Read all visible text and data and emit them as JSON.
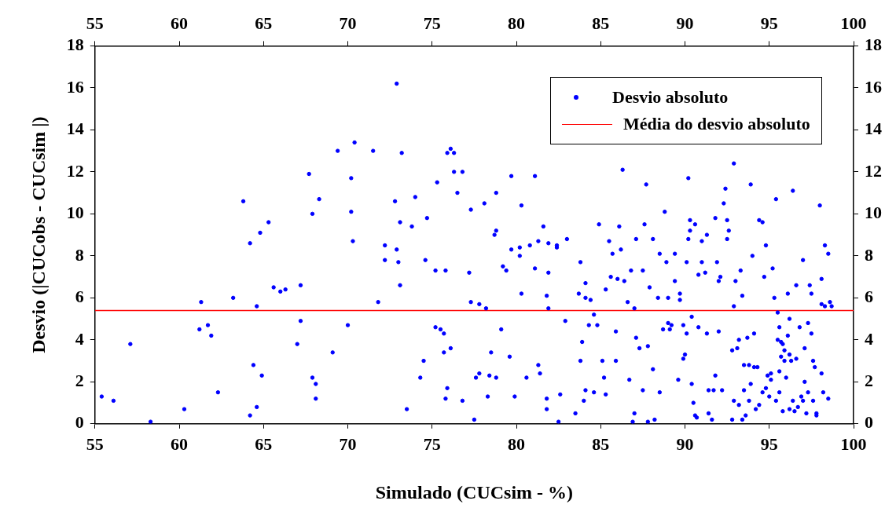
{
  "chart_data": {
    "type": "scatter",
    "xlabel": "Simulado (CUCsim - %)",
    "ylabel": "Desvio (|CUCobs - CUCsim |)",
    "xlim": [
      55,
      100
    ],
    "xticks": [
      55,
      60,
      65,
      70,
      75,
      80,
      85,
      90,
      95,
      100
    ],
    "x2lim": [
      55,
      100
    ],
    "x2ticks": [
      55,
      60,
      65,
      70,
      75,
      80,
      85,
      90,
      95,
      100
    ],
    "ylim": [
      0,
      18
    ],
    "yticks": [
      0,
      2,
      4,
      6,
      8,
      10,
      12,
      14,
      16,
      18
    ],
    "y2lim": [
      0,
      18
    ],
    "y2ticks": [
      0,
      2,
      4,
      6,
      8,
      10,
      12,
      14,
      16,
      18
    ],
    "grid": false,
    "legend": "top right",
    "marker": "circle",
    "ref_lines": [
      {
        "axis": "y",
        "value": 5.4,
        "label": "Média do desvio absoluto",
        "color": "#ff0000"
      }
    ],
    "series": [
      {
        "name": "Desvio absoluto",
        "color": "#0000ff",
        "x": [
          55.4,
          56.1,
          57.1,
          58.3,
          60.3,
          61.2,
          61.3,
          61.7,
          61.9,
          62.3,
          63.2,
          63.8,
          64.2,
          64.2,
          64.4,
          64.6,
          64.6,
          64.8,
          64.9,
          65.3,
          65.6,
          66.0,
          66.3,
          67.0,
          67.2,
          67.2,
          67.7,
          67.9,
          67.9,
          68.1,
          68.1,
          68.3,
          69.1,
          69.4,
          70.0,
          70.2,
          70.2,
          70.3,
          70.4,
          71.5,
          71.8,
          72.2,
          72.2,
          72.8,
          72.9,
          72.9,
          73.0,
          73.1,
          73.1,
          73.2,
          73.5,
          73.8,
          74.0,
          74.3,
          74.5,
          74.7,
          74.6,
          75.3,
          75.2,
          75.2,
          75.5,
          75.7,
          75.7,
          75.8,
          75.9,
          75.8,
          75.9,
          76.1,
          76.1,
          76.3,
          76.3,
          76.5,
          76.8,
          76.8,
          77.2,
          77.3,
          77.3,
          77.5,
          77.6,
          77.8,
          77.8,
          78.1,
          78.2,
          78.3,
          78.4,
          78.5,
          78.7,
          78.8,
          78.8,
          78.8,
          79.1,
          79.2,
          79.4,
          79.7,
          79.7,
          79.6,
          79.9,
          80.2,
          80.3,
          80.2,
          80.3,
          80.6,
          80.8,
          81.1,
          81.1,
          81.3,
          81.3,
          81.4,
          81.6,
          81.8,
          81.8,
          81.9,
          81.9,
          81.9,
          81.8,
          82.4,
          82.4,
          82.5,
          82.6,
          82.9,
          83.0,
          83.5,
          83.7,
          83.8,
          83.8,
          83.9,
          84.0,
          84.1,
          84.1,
          84.1,
          84.4,
          84.3,
          84.6,
          84.6,
          84.8,
          84.9,
          85.1,
          85.2,
          85.3,
          85.3,
          85.5,
          85.6,
          85.7,
          85.9,
          85.9,
          86.0,
          86.1,
          86.2,
          86.3,
          86.4,
          86.6,
          86.7,
          86.8,
          86.9,
          87.0,
          87.0,
          87.1,
          87.1,
          87.3,
          87.5,
          87.5,
          87.6,
          87.7,
          87.8,
          87.8,
          87.9,
          88.1,
          88.1,
          88.2,
          88.4,
          88.5,
          88.5,
          88.7,
          88.8,
          88.9,
          89.0,
          89.0,
          89.1,
          89.2,
          89.4,
          89.4,
          89.6,
          89.7,
          89.7,
          89.9,
          89.9,
          90.0,
          90.1,
          90.2,
          90.1,
          90.2,
          90.3,
          90.3,
          90.4,
          90.4,
          90.5,
          90.6,
          90.6,
          90.7,
          90.8,
          90.8,
          91.0,
          91.0,
          91.2,
          91.3,
          91.3,
          91.4,
          91.4,
          91.6,
          91.7,
          91.8,
          91.8,
          91.9,
          92.0,
          92.0,
          92.1,
          92.2,
          92.3,
          92.4,
          92.5,
          92.5,
          92.6,
          92.8,
          92.8,
          92.9,
          92.9,
          92.9,
          93.0,
          93.1,
          93.2,
          93.2,
          93.3,
          93.4,
          93.4,
          93.5,
          93.5,
          93.6,
          93.7,
          93.8,
          93.8,
          93.9,
          93.9,
          94.0,
          94.1,
          94.1,
          94.2,
          94.3,
          94.4,
          94.4,
          94.6,
          94.6,
          94.7,
          94.8,
          94.8,
          94.9,
          95.0,
          95.1,
          95.1,
          95.2,
          95.3,
          95.4,
          95.4,
          95.5,
          95.5,
          95.6,
          95.6,
          95.6,
          95.7,
          95.7,
          95.8,
          95.8,
          95.9,
          95.9,
          96.0,
          96.1,
          96.1,
          96.2,
          96.2,
          96.2,
          96.3,
          96.4,
          96.4,
          96.5,
          96.6,
          96.6,
          96.7,
          96.8,
          96.9,
          97.0,
          97.0,
          97.1,
          97.1,
          97.2,
          97.3,
          97.3,
          97.4,
          97.5,
          97.5,
          97.6,
          97.6,
          97.7,
          97.8,
          97.8,
          98.0,
          98.1,
          98.1,
          98.1,
          98.2,
          98.3,
          98.3,
          98.5,
          98.5,
          98.6,
          98.7
        ],
        "values": [
          1.3,
          1.1,
          3.8,
          0.1,
          0.7,
          4.5,
          5.8,
          4.7,
          4.2,
          1.5,
          6.0,
          10.6,
          8.6,
          0.4,
          2.8,
          0.8,
          5.6,
          9.1,
          2.3,
          9.6,
          6.5,
          6.3,
          6.4,
          3.8,
          6.6,
          4.9,
          11.9,
          10.0,
          2.2,
          1.9,
          1.2,
          10.7,
          3.4,
          13.0,
          4.7,
          11.7,
          10.1,
          8.7,
          13.4,
          13.0,
          5.8,
          8.5,
          7.8,
          10.6,
          16.2,
          8.3,
          7.7,
          6.6,
          9.6,
          12.9,
          0.7,
          9.4,
          10.8,
          2.2,
          3.0,
          9.8,
          7.8,
          11.5,
          7.3,
          4.6,
          4.5,
          3.4,
          4.3,
          1.2,
          1.7,
          7.3,
          12.9,
          13.1,
          3.6,
          12.9,
          12.0,
          11.0,
          12.0,
          1.1,
          7.2,
          10.2,
          5.8,
          0.2,
          2.2,
          5.7,
          2.4,
          10.5,
          5.5,
          1.3,
          2.3,
          3.4,
          9.0,
          9.2,
          11.0,
          2.2,
          4.5,
          7.5,
          7.3,
          8.3,
          11.8,
          3.2,
          1.3,
          8.0,
          10.4,
          8.4,
          6.2,
          2.2,
          8.5,
          11.8,
          7.4,
          8.7,
          2.8,
          2.4,
          9.4,
          6.1,
          1.2,
          5.5,
          7.2,
          8.6,
          0.7,
          8.5,
          8.4,
          0.1,
          1.4,
          4.9,
          8.8,
          0.5,
          6.2,
          7.7,
          3.0,
          3.9,
          1.1,
          6.0,
          6.7,
          1.6,
          5.9,
          4.7,
          5.2,
          1.5,
          4.7,
          9.5,
          3.0,
          2.2,
          6.4,
          1.4,
          8.7,
          7.0,
          8.1,
          4.4,
          3.0,
          6.9,
          9.4,
          8.3,
          12.1,
          6.8,
          5.8,
          2.1,
          7.3,
          0.1,
          0.5,
          5.5,
          4.1,
          8.8,
          3.6,
          1.6,
          7.3,
          9.5,
          11.4,
          0.1,
          3.7,
          6.5,
          8.8,
          2.6,
          0.2,
          6.0,
          8.1,
          1.5,
          4.5,
          10.1,
          7.7,
          6.0,
          4.8,
          4.5,
          4.7,
          8.1,
          6.8,
          2.1,
          5.9,
          6.2,
          4.7,
          3.1,
          3.3,
          4.3,
          11.7,
          7.7,
          8.8,
          9.2,
          9.7,
          5.1,
          1.9,
          1.0,
          9.5,
          0.4,
          0.3,
          7.1,
          4.6,
          8.7,
          7.7,
          7.2,
          9.0,
          4.3,
          1.6,
          0.5,
          0.2,
          1.6,
          9.8,
          2.3,
          7.7,
          4.4,
          6.8,
          7.0,
          1.6,
          10.5,
          11.2,
          9.7,
          8.8,
          9.2,
          3.5,
          0.2,
          1.1,
          12.4,
          5.6,
          6.8,
          3.6,
          4.0,
          0.9,
          7.3,
          6.1,
          0.2,
          2.8,
          1.6,
          0.4,
          4.1,
          1.1,
          2.8,
          1.9,
          11.4,
          8.0,
          2.7,
          4.3,
          0.7,
          2.7,
          9.7,
          0.9,
          9.6,
          1.5,
          7.0,
          1.7,
          8.5,
          2.3,
          1.3,
          2.1,
          2.4,
          7.4,
          6.0,
          10.7,
          1.1,
          4.0,
          5.3,
          2.5,
          4.6,
          1.5,
          3.9,
          3.2,
          0.6,
          3.8,
          3.5,
          3.0,
          2.2,
          6.2,
          4.2,
          0.7,
          3.3,
          5.0,
          3.0,
          11.1,
          1.1,
          0.6,
          6.6,
          3.1,
          0.8,
          4.6,
          1.3,
          1.1,
          7.8,
          2.0,
          3.6,
          0.5,
          1.5,
          4.8,
          6.6,
          6.2,
          4.3,
          3.0,
          1.1,
          2.7,
          0.5,
          0.4,
          10.4,
          5.7,
          6.9,
          2.4,
          1.5,
          8.5,
          5.6,
          8.1,
          1.2,
          5.8,
          5.6
        ]
      }
    ]
  }
}
